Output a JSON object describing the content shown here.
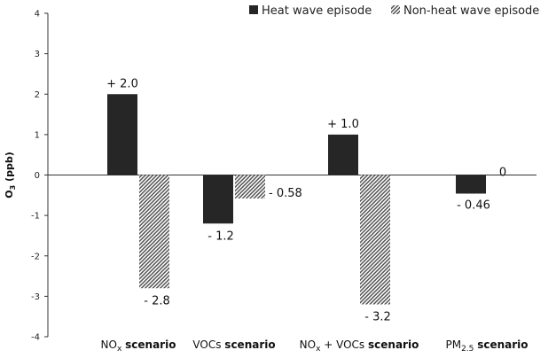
{
  "chart_data": {
    "type": "bar",
    "categories": [
      {
        "main": "NO",
        "sub": "x",
        "rest": "",
        "suffix": "scenario"
      },
      {
        "main": "VOCs",
        "sub": "",
        "rest": "",
        "suffix": "scenario"
      },
      {
        "main": "NO",
        "sub": "x",
        "rest": " + VOCs",
        "suffix": "scenario"
      },
      {
        "main": "PM",
        "sub": "2.5",
        "rest": "",
        "suffix": "scenario"
      }
    ],
    "series": [
      {
        "name": "Heat wave episode",
        "pattern": "solid",
        "color": "#262626",
        "values": [
          2.0,
          -1.2,
          1.0,
          -0.46
        ]
      },
      {
        "name": "Non-heat wave episode",
        "pattern": "hatched",
        "color": "#6e6e6e",
        "values": [
          -2.8,
          -0.58,
          -3.2,
          0
        ]
      }
    ],
    "data_labels": [
      [
        "+ 2.0",
        "- 1.2",
        "+ 1.0",
        "- 0.46"
      ],
      [
        "- 2.8",
        "- 0.58",
        "- 3.2",
        "0"
      ]
    ],
    "ylabel": {
      "main": "O",
      "sub": "3",
      "rest": " (ppb)"
    },
    "ylim": [
      -4,
      4
    ],
    "yticks": [
      -4,
      -3,
      -2,
      -1,
      0,
      1,
      2,
      3,
      4
    ],
    "grid": false,
    "legend_position": "top-right"
  }
}
